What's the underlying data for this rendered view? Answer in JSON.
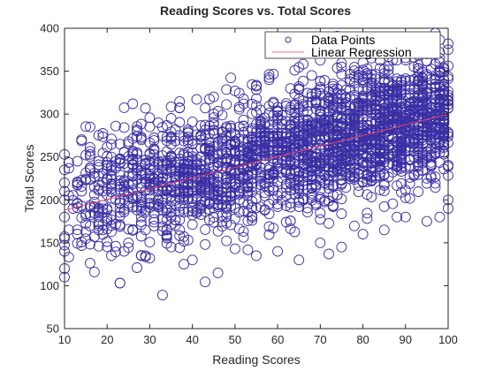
{
  "chart_data": {
    "type": "scatter",
    "title": "Reading Scores vs. Total Scores",
    "xlabel": "Reading Scores",
    "ylabel": "Total Scores",
    "xlim": [
      10,
      100
    ],
    "ylim": [
      50,
      400
    ],
    "xticks": [
      10,
      20,
      30,
      40,
      50,
      60,
      70,
      80,
      90,
      100
    ],
    "yticks": [
      50,
      100,
      150,
      200,
      250,
      300,
      350,
      400
    ],
    "grid": false,
    "legend_position": "top-right",
    "series": [
      {
        "name": "Data Points",
        "kind": "points",
        "color": "#3a2fa3",
        "outliers": [
          {
            "x": 10,
            "y": 110
          },
          {
            "x": 10,
            "y": 120
          },
          {
            "x": 10,
            "y": 140
          },
          {
            "x": 10,
            "y": 155
          },
          {
            "x": 10,
            "y": 180
          },
          {
            "x": 10,
            "y": 200
          },
          {
            "x": 10,
            "y": 210
          },
          {
            "x": 10,
            "y": 220
          },
          {
            "x": 10,
            "y": 235
          },
          {
            "x": 10,
            "y": 253
          },
          {
            "x": 12,
            "y": 190
          },
          {
            "x": 14,
            "y": 210
          },
          {
            "x": 15,
            "y": 163
          },
          {
            "x": 16,
            "y": 285
          },
          {
            "x": 18,
            "y": 165
          },
          {
            "x": 20,
            "y": 175
          },
          {
            "x": 21,
            "y": 250
          },
          {
            "x": 22,
            "y": 286
          },
          {
            "x": 23,
            "y": 103
          },
          {
            "x": 24,
            "y": 140
          },
          {
            "x": 25,
            "y": 150
          },
          {
            "x": 27,
            "y": 121
          },
          {
            "x": 28,
            "y": 135
          },
          {
            "x": 30,
            "y": 132
          },
          {
            "x": 33,
            "y": 89
          },
          {
            "x": 35,
            "y": 145
          },
          {
            "x": 38,
            "y": 125
          },
          {
            "x": 40,
            "y": 130
          },
          {
            "x": 43,
            "y": 148
          },
          {
            "x": 46,
            "y": 115
          },
          {
            "x": 50,
            "y": 143
          },
          {
            "x": 55,
            "y": 135
          },
          {
            "x": 60,
            "y": 140
          },
          {
            "x": 65,
            "y": 130
          },
          {
            "x": 70,
            "y": 150
          },
          {
            "x": 72,
            "y": 137
          },
          {
            "x": 75,
            "y": 145
          },
          {
            "x": 80,
            "y": 160
          },
          {
            "x": 85,
            "y": 165
          },
          {
            "x": 88,
            "y": 180
          },
          {
            "x": 90,
            "y": 180
          },
          {
            "x": 95,
            "y": 175
          },
          {
            "x": 98,
            "y": 180
          },
          {
            "x": 100,
            "y": 190
          },
          {
            "x": 100,
            "y": 200
          },
          {
            "x": 100,
            "y": 375
          },
          {
            "x": 100,
            "y": 382
          },
          {
            "x": 98,
            "y": 365
          },
          {
            "x": 95,
            "y": 370
          },
          {
            "x": 92,
            "y": 355
          },
          {
            "x": 85,
            "y": 352
          },
          {
            "x": 80,
            "y": 360
          },
          {
            "x": 75,
            "y": 355
          },
          {
            "x": 68,
            "y": 345
          },
          {
            "x": 58,
            "y": 340
          },
          {
            "x": 50,
            "y": 327
          },
          {
            "x": 45,
            "y": 320
          },
          {
            "x": 41,
            "y": 317
          },
          {
            "x": 37,
            "y": 307
          },
          {
            "x": 35,
            "y": 295
          },
          {
            "x": 32,
            "y": 290
          },
          {
            "x": 30,
            "y": 285
          },
          {
            "x": 28,
            "y": 270
          },
          {
            "x": 25,
            "y": 265
          },
          {
            "x": 22,
            "y": 245
          },
          {
            "x": 20,
            "y": 240
          },
          {
            "x": 18,
            "y": 245
          },
          {
            "x": 16,
            "y": 235
          },
          {
            "x": 13,
            "y": 245
          },
          {
            "x": 11,
            "y": 205
          }
        ]
      },
      {
        "name": "Linear Regression",
        "kind": "line",
        "color": "#e8436e",
        "x": [
          10,
          100
        ],
        "y": [
          188,
          300
        ]
      }
    ]
  }
}
